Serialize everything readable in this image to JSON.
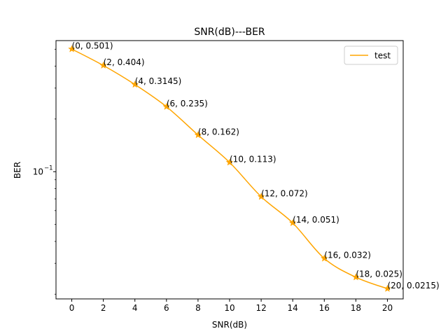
{
  "chart_data": {
    "type": "line",
    "title": "SNR(dB)---BER",
    "xlabel": "SNR(dB)",
    "ylabel": "BER",
    "y_scale": "log",
    "xlim": [
      -1,
      21
    ],
    "ylim": [
      0.0188,
      0.56
    ],
    "x_ticks": [
      0,
      2,
      4,
      6,
      8,
      10,
      12,
      14,
      16,
      18,
      20
    ],
    "x_tick_labels": [
      "0",
      "2",
      "4",
      "6",
      "8",
      "10",
      "12",
      "14",
      "16",
      "18",
      "20"
    ],
    "y_major_ticks": [
      0.1
    ],
    "y_major_tick_labels": [
      "10"
    ],
    "y_major_tick_exponents": [
      "−1"
    ],
    "y_minor_ticks": [
      0.02,
      0.03,
      0.04,
      0.05,
      0.06,
      0.07,
      0.08,
      0.09,
      0.2,
      0.3,
      0.4,
      0.5
    ],
    "grid": false,
    "legend_position": "top-right",
    "series": [
      {
        "name": "test",
        "color": "#FFA500",
        "marker": "star",
        "x": [
          0,
          2,
          4,
          6,
          8,
          10,
          12,
          14,
          16,
          18,
          20
        ],
        "y": [
          0.501,
          0.404,
          0.3145,
          0.235,
          0.162,
          0.113,
          0.072,
          0.051,
          0.032,
          0.025,
          0.0215
        ]
      }
    ],
    "annotations": [
      "(0, 0.501)",
      "(2, 0.404)",
      "(4, 0.3145)",
      "(6, 0.235)",
      "(8, 0.162)",
      "(10, 0.113)",
      "(12, 0.072)",
      "(14, 0.051)",
      "(16, 0.032)",
      "(18, 0.025)",
      "(20, 0.0215)"
    ]
  }
}
